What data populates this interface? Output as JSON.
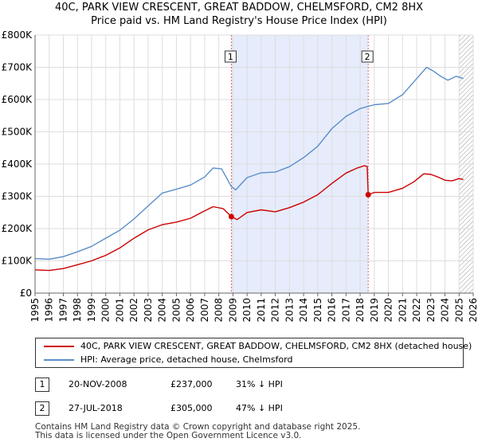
{
  "title": {
    "line1": "40C, PARK VIEW CRESCENT, GREAT BADDOW, CHELMSFORD, CM2 8HX",
    "line2": "Price paid vs. HM Land Registry's House Price Index (HPI)"
  },
  "colors": {
    "property_line": "#cc0000",
    "hpi_line": "#5b8ec9",
    "highlight": "#e6ecfb",
    "grid": "#dddddd",
    "marker_vline": "#e06666"
  },
  "chart_data": {
    "type": "line",
    "ylim": [
      0,
      800000
    ],
    "xlim": [
      1995.0,
      2026.0
    ],
    "y_ticks": [
      {
        "value": 0,
        "label": "£0"
      },
      {
        "value": 100000,
        "label": "£100K"
      },
      {
        "value": 200000,
        "label": "£200K"
      },
      {
        "value": 300000,
        "label": "£300K"
      },
      {
        "value": 400000,
        "label": "£400K"
      },
      {
        "value": 500000,
        "label": "£500K"
      },
      {
        "value": 600000,
        "label": "£600K"
      },
      {
        "value": 700000,
        "label": "£700K"
      },
      {
        "value": 800000,
        "label": "£800K"
      }
    ],
    "x_ticks": [
      "1995",
      "1996",
      "1997",
      "1998",
      "1999",
      "2000",
      "2001",
      "2002",
      "2003",
      "2004",
      "2005",
      "2006",
      "2007",
      "2008",
      "2009",
      "2010",
      "2011",
      "2012",
      "2013",
      "2014",
      "2015",
      "2016",
      "2017",
      "2018",
      "2019",
      "2020",
      "2021",
      "2022",
      "2023",
      "2024",
      "2025",
      "2026"
    ],
    "highlight_range": [
      2008.89,
      2018.57
    ],
    "hatch_from": 2025.0,
    "markers": [
      {
        "label": "1",
        "x": 2008.89,
        "y": 237000
      },
      {
        "label": "2",
        "x": 2018.57,
        "y": 305000
      }
    ],
    "series": [
      {
        "name": "40C, PARK VIEW CRESCENT, GREAT BADDOW, CHELMSFORD, CM2 8HX (detached house)",
        "color": "#cc0000",
        "points": [
          [
            1995.0,
            72000
          ],
          [
            1996.0,
            70000
          ],
          [
            1997.0,
            76000
          ],
          [
            1998.0,
            88000
          ],
          [
            1999.0,
            100000
          ],
          [
            2000.0,
            117000
          ],
          [
            2001.0,
            140000
          ],
          [
            2002.0,
            170000
          ],
          [
            2003.0,
            196000
          ],
          [
            2004.0,
            212000
          ],
          [
            2005.0,
            220000
          ],
          [
            2006.0,
            232000
          ],
          [
            2007.0,
            255000
          ],
          [
            2007.6,
            268000
          ],
          [
            2008.3,
            262000
          ],
          [
            2008.89,
            237000
          ],
          [
            2009.3,
            228000
          ],
          [
            2010.0,
            250000
          ],
          [
            2011.0,
            258000
          ],
          [
            2012.0,
            252000
          ],
          [
            2013.0,
            265000
          ],
          [
            2014.0,
            282000
          ],
          [
            2015.0,
            305000
          ],
          [
            2016.0,
            340000
          ],
          [
            2017.0,
            372000
          ],
          [
            2017.8,
            388000
          ],
          [
            2018.3,
            395000
          ],
          [
            2018.5,
            392000
          ],
          [
            2018.57,
            305000
          ],
          [
            2019.0,
            312000
          ],
          [
            2020.0,
            312000
          ],
          [
            2021.0,
            325000
          ],
          [
            2021.8,
            345000
          ],
          [
            2022.5,
            370000
          ],
          [
            2023.0,
            368000
          ],
          [
            2023.5,
            360000
          ],
          [
            2024.0,
            350000
          ],
          [
            2024.5,
            348000
          ],
          [
            2025.0,
            355000
          ],
          [
            2025.3,
            352000
          ]
        ]
      },
      {
        "name": "HPI: Average price, detached house, Chelmsford",
        "color": "#5b8ec9",
        "points": [
          [
            1995.0,
            107000
          ],
          [
            1996.0,
            105000
          ],
          [
            1997.0,
            113000
          ],
          [
            1998.0,
            128000
          ],
          [
            1999.0,
            145000
          ],
          [
            2000.0,
            170000
          ],
          [
            2001.0,
            195000
          ],
          [
            2002.0,
            230000
          ],
          [
            2003.0,
            270000
          ],
          [
            2004.0,
            310000
          ],
          [
            2005.0,
            322000
          ],
          [
            2006.0,
            335000
          ],
          [
            2007.0,
            360000
          ],
          [
            2007.6,
            388000
          ],
          [
            2008.2,
            385000
          ],
          [
            2008.89,
            330000
          ],
          [
            2009.2,
            320000
          ],
          [
            2010.0,
            358000
          ],
          [
            2011.0,
            373000
          ],
          [
            2012.0,
            375000
          ],
          [
            2013.0,
            392000
          ],
          [
            2014.0,
            420000
          ],
          [
            2015.0,
            455000
          ],
          [
            2016.0,
            510000
          ],
          [
            2017.0,
            548000
          ],
          [
            2018.0,
            572000
          ],
          [
            2019.0,
            584000
          ],
          [
            2020.0,
            588000
          ],
          [
            2021.0,
            615000
          ],
          [
            2022.0,
            665000
          ],
          [
            2022.7,
            700000
          ],
          [
            2023.2,
            688000
          ],
          [
            2023.7,
            672000
          ],
          [
            2024.2,
            660000
          ],
          [
            2024.8,
            672000
          ],
          [
            2025.3,
            665000
          ]
        ]
      }
    ]
  },
  "legend": {
    "property_label": "40C, PARK VIEW CRESCENT, GREAT BADDOW, CHELMSFORD, CM2 8HX (detached house)",
    "hpi_label": "HPI: Average price, detached house, Chelmsford"
  },
  "transactions": [
    {
      "num": "1",
      "date": "20-NOV-2008",
      "price": "£237,000",
      "hpi": "31% ↓ HPI"
    },
    {
      "num": "2",
      "date": "27-JUL-2018",
      "price": "£305,000",
      "hpi": "47% ↓ HPI"
    }
  ],
  "footer": {
    "line1": "Contains HM Land Registry data © Crown copyright and database right 2025.",
    "line2": "This data is licensed under the Open Government Licence v3.0."
  }
}
